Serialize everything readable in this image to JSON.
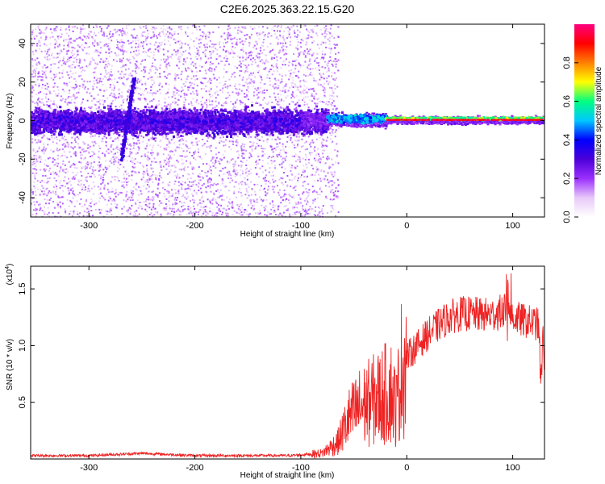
{
  "title": "C2E6.2025.363.22.15.G20",
  "chart_data": [
    {
      "type": "heatmap",
      "name": "spectrogram",
      "xlabel": "Height of straight line (km)",
      "ylabel": "Frequency (Hz)",
      "xlim": [
        -355,
        130
      ],
      "ylim": [
        -50,
        50
      ],
      "xticks": [
        -300,
        -200,
        -100,
        0,
        100
      ],
      "yticks": [
        -40,
        -20,
        0,
        20,
        40
      ],
      "colorbar": {
        "label": "Normalized spectral amplitude",
        "range": [
          0,
          1
        ],
        "ticks": [
          "0.0",
          "0.2",
          "0.4",
          "0.6",
          "0.8"
        ],
        "colormap": [
          "#ffffff",
          "#e8c8f8",
          "#9b30ff",
          "#4b00d8",
          "#0000ff",
          "#00c8ff",
          "#00ff80",
          "#ffff00",
          "#ff8000",
          "#ff0000",
          "#ff0080"
        ]
      },
      "features": {
        "carrier_frequency_hz": 0,
        "noise_band_halfwidth_hz": 8,
        "strong_signal_start_km": -75,
        "locked_signal_start_km": -20,
        "transient_streak": {
          "x_from_km": -270,
          "x_to_km": -258,
          "f_from_hz": -20,
          "f_to_hz": 22
        }
      }
    },
    {
      "type": "line",
      "name": "snr",
      "xlabel": "Height of straight line (km)",
      "ylabel": "SNR (10 * v/v)",
      "y_multiplier": "(x10",
      "y_multiplier_exp": "4",
      "y_multiplier_close": ")",
      "xlim": [
        -355,
        130
      ],
      "ylim": [
        0.0,
        1.7
      ],
      "xticks": [
        -300,
        -200,
        -100,
        0,
        100
      ],
      "yticks": [
        "0.5",
        "1.0",
        "1.5"
      ],
      "color": "#ee2222",
      "series": [
        {
          "name": "SNR",
          "x": [
            -355,
            -300,
            -250,
            -200,
            -150,
            -110,
            -80,
            -65,
            -55,
            -45,
            -35,
            -25,
            -15,
            -10,
            -5,
            0,
            10,
            20,
            30,
            40,
            50,
            60,
            70,
            80,
            90,
            95,
            100,
            110,
            120,
            125,
            130
          ],
          "y": [
            0.03,
            0.03,
            0.05,
            0.03,
            0.03,
            0.03,
            0.05,
            0.15,
            0.35,
            0.45,
            0.5,
            0.55,
            0.6,
            0.45,
            0.8,
            0.9,
            1.0,
            1.1,
            1.18,
            1.25,
            1.28,
            1.28,
            1.27,
            1.27,
            1.3,
            1.35,
            1.25,
            1.22,
            1.2,
            1.18,
            1.05
          ]
        }
      ]
    }
  ],
  "colors": {
    "background": "#ffffff",
    "axes": "#000000",
    "snr_line": "#ee2222"
  }
}
